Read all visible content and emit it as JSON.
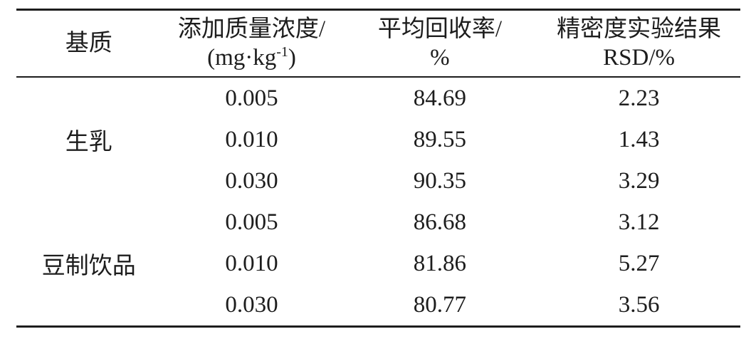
{
  "page": {
    "background": "#ffffff",
    "text_color": "#1d1d1d"
  },
  "table": {
    "headers": {
      "matrix": "基质",
      "concentration": {
        "line1": "添加质量浓度/",
        "unit_open": "(mg·kg",
        "unit_sup": "-1",
        "unit_close": ")"
      },
      "recovery": {
        "line1": "平均回收率/",
        "line2": "%"
      },
      "precision": {
        "line1": "精密度实验结果",
        "line2": "RSD/%"
      }
    },
    "groups": [
      {
        "matrix": "生乳",
        "rows": [
          {
            "concentration": "0.005",
            "recovery": "84.69",
            "rsd": "2.23"
          },
          {
            "concentration": "0.010",
            "recovery": "89.55",
            "rsd": "1.43"
          },
          {
            "concentration": "0.030",
            "recovery": "90.35",
            "rsd": "3.29"
          }
        ]
      },
      {
        "matrix": "豆制饮品",
        "rows": [
          {
            "concentration": "0.005",
            "recovery": "86.68",
            "rsd": "3.12"
          },
          {
            "concentration": "0.010",
            "recovery": "81.86",
            "rsd": "5.27"
          },
          {
            "concentration": "0.030",
            "recovery": "80.77",
            "rsd": "3.56"
          }
        ]
      }
    ]
  }
}
